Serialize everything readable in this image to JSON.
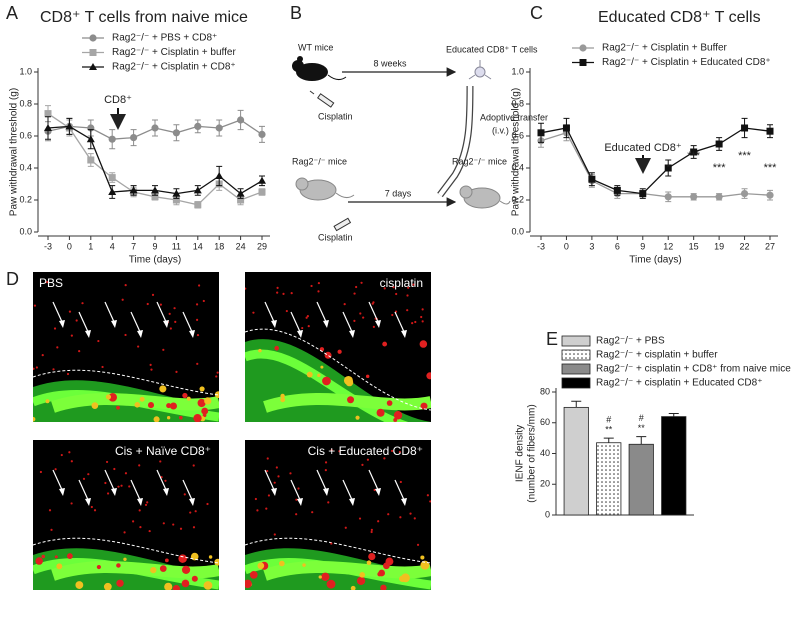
{
  "panel_labels": [
    "A",
    "B",
    "C",
    "D",
    "E"
  ],
  "chart_data": [
    {
      "type": "line",
      "title": "CD8⁺ T cells from naive mice",
      "x_label": "Time (days)",
      "y_label": "Paw withdrawal threshold (g)",
      "categories": [
        "-3",
        "0",
        "1",
        "4",
        "7",
        "9",
        "11",
        "14",
        "18",
        "24",
        "29"
      ],
      "ylim": [
        0,
        1
      ],
      "yticks": [
        {
          "value": 0,
          "label": "0.0"
        },
        0.2,
        0.4,
        0.6,
        0.8,
        {
          "value": 1,
          "label": "1.0"
        }
      ],
      "annotations": [
        "CD8⁺"
      ],
      "series": [
        {
          "name": "Rag2⁻/⁻ + PBS + CD8⁺",
          "color": "#8c8c8c",
          "marker": "circle",
          "values": [
            0.63,
            0.66,
            0.65,
            0.58,
            0.59,
            0.65,
            0.62,
            0.66,
            0.65,
            0.7,
            0.61
          ],
          "errors": [
            0.06,
            0.05,
            0.05,
            0.06,
            0.05,
            0.05,
            0.05,
            0.04,
            0.05,
            0.06,
            0.05
          ]
        },
        {
          "name": "Rag2⁻/⁻ + Cisplatin + buffer",
          "color": "#a6a6a6",
          "marker": "square",
          "values": [
            0.74,
            0.65,
            0.45,
            0.34,
            0.25,
            0.22,
            0.2,
            0.17,
            0.3,
            0.2,
            0.25
          ],
          "errors": [
            0.05,
            0.05,
            0.04,
            0.03,
            0.03,
            0.02,
            0.03,
            0.02,
            0.04,
            0.03,
            0.02
          ]
        },
        {
          "name": "Rag2⁻/⁻ + Cisplatin + CD8⁺",
          "color": "#111111",
          "marker": "triangle",
          "values": [
            0.65,
            0.66,
            0.58,
            0.25,
            0.26,
            0.26,
            0.24,
            0.26,
            0.35,
            0.24,
            0.32
          ],
          "errors": [
            0.07,
            0.05,
            0.06,
            0.04,
            0.03,
            0.03,
            0.03,
            0.03,
            0.06,
            0.03,
            0.03
          ]
        }
      ]
    },
    {
      "type": "line",
      "title": "Educated CD8⁺ T cells",
      "x_label": "Time (days)",
      "y_label": "Paw withdrawal threshold (g)",
      "categories": [
        "-3",
        "0",
        "3",
        "6",
        "9",
        "12",
        "15",
        "19",
        "22",
        "27"
      ],
      "ylim": [
        0,
        1
      ],
      "yticks": [
        {
          "value": 0,
          "label": "0.0"
        },
        0.2,
        0.4,
        0.6,
        0.8,
        {
          "value": 1,
          "label": "1.0"
        }
      ],
      "annotations": [
        "Educated CD8⁺"
      ],
      "significance": [
        null,
        null,
        null,
        null,
        null,
        "*",
        "***",
        "***",
        "***",
        "***"
      ],
      "series": [
        {
          "name": "Rag2⁻/⁻ + Cisplatin + Buffer",
          "color": "#999999",
          "marker": "circle",
          "values": [
            0.57,
            0.62,
            0.32,
            0.24,
            0.24,
            0.22,
            0.22,
            0.22,
            0.24,
            0.23
          ],
          "errors": [
            0.04,
            0.05,
            0.04,
            0.03,
            0.02,
            0.03,
            0.02,
            0.02,
            0.03,
            0.03
          ]
        },
        {
          "name": "Rag2⁻/⁻ + Cisplatin + Educated CD8⁺",
          "color": "#111111",
          "marker": "square",
          "values": [
            0.62,
            0.65,
            0.33,
            0.26,
            0.24,
            0.4,
            0.5,
            0.55,
            0.65,
            0.63
          ],
          "errors": [
            0.06,
            0.06,
            0.04,
            0.03,
            0.03,
            0.05,
            0.04,
            0.04,
            0.06,
            0.04
          ]
        }
      ]
    },
    {
      "type": "bar",
      "y_label": [
        "IENF density",
        "(number of fibers/mm)"
      ],
      "categories": [
        "Rag2⁻/⁻ + PBS",
        "Rag2⁻/⁻ + cisplatin + buffer",
        "Rag2⁻/⁻ + cisplatin + CD8⁺ from naive mice",
        "Rag2⁻/⁻ + cisplatin + Educated CD8⁺"
      ],
      "values": [
        70,
        47,
        46,
        64
      ],
      "errors": [
        4,
        3,
        5,
        2
      ],
      "colors": [
        "#cfcfcf",
        "#ffffff",
        "#8a8a8a",
        "#000000"
      ],
      "patterns": [
        null,
        "dots",
        null,
        null
      ],
      "marks_above": [
        null,
        [
          "#",
          "**"
        ],
        [
          "#",
          "**"
        ],
        null
      ],
      "ylim": [
        0,
        80
      ],
      "yticks": [
        0,
        20,
        40,
        60,
        80
      ]
    }
  ],
  "diagram": {
    "wt_label": "WT mice",
    "top_arrow": "8 weeks",
    "educated": "Educated CD8⁺ T cells",
    "cisplatin_top": "Cisplatin",
    "transfer": "Adoptive transfer",
    "route": "(i.v.)",
    "rag_label": "Rag2⁻/⁻ mice",
    "bottom_arrow": "7 days",
    "recipient": "Rag2⁻/⁻ mice",
    "cisplatin_bottom": "Cisplatin"
  },
  "micrographs": [
    "PBS",
    "cisplatin",
    "Cis + Naïve CD8⁺",
    "Cis + Educated CD8⁺"
  ]
}
